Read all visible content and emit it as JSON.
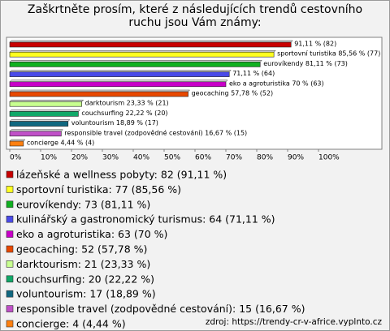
{
  "chart_data": {
    "type": "bar",
    "title": "Zaškrtněte prosím, které z následujících trendů cestovního ruchu jsou Vám známy:",
    "categories": [
      "lázeňské a wellness pobyty",
      "sportovní turistika",
      "eurovíkendy",
      "kulinářský a gastronomický turismus",
      "eko a agroturistika",
      "geocaching",
      "darktourism",
      "couchsurfing",
      "voluntourism",
      "responsible travel (zodpovědné cestování)",
      "concierge"
    ],
    "values": [
      91.11,
      85.56,
      81.11,
      71.11,
      70,
      57.78,
      23.33,
      22.22,
      18.89,
      16.67,
      4.44
    ],
    "value_labels": [
      "91,11 % (82)",
      "sportovní turistika 85,56 % (77)",
      "eurovíkendy 81,11 % (73)",
      "71,11 % (64)",
      "eko a agroturistika 70 % (63)",
      "geocaching 57,78 % (52)",
      "darktourism 23,33 % (21)",
      "couchsurfing 22,22 % (20)",
      "voluntourism 18,89 % (17)",
      "responsible travel (zodpovědné cestování) 16,67 % (15)",
      "concierge 4,44 % (4)"
    ],
    "colors": [
      "#c80000",
      "#ffff20",
      "#10b020",
      "#4a4ae8",
      "#c800c8",
      "#e84800",
      "#c8ff90",
      "#10a868",
      "#106880",
      "#c050c8",
      "#ff8010"
    ],
    "legend": [
      "lázeňské a wellness pobyty: 82 (91,11 %)",
      "sportovní turistika: 77 (85,56 %)",
      "eurovíkendy: 73 (81,11 %)",
      "kulinářský a gastronomický turismus: 64 (71,11 %)",
      "eko a agroturistika: 63 (70 %)",
      "geocaching: 52 (57,78 %)",
      "darktourism: 21 (23,33 %)",
      "couchsurfing: 20 (22,22 %)",
      "voluntourism: 17 (18,89 %)",
      "responsible travel (zodpovědné cestování): 15 (16,67 %)",
      "concierge: 4 (4,44 %)"
    ],
    "xlim": [
      0,
      100
    ],
    "xticks": [
      {
        "value": 0,
        "label": "0%"
      },
      {
        "value": 10,
        "label": "10%"
      },
      {
        "value": 20,
        "label": "20%"
      },
      {
        "value": 30,
        "label": "30%"
      },
      {
        "value": 40,
        "label": "40%"
      },
      {
        "value": 50,
        "label": "50%"
      },
      {
        "value": 60,
        "label": "60%"
      },
      {
        "value": 70,
        "label": "70%"
      },
      {
        "value": 80,
        "label": "80%"
      },
      {
        "value": 90,
        "label": "90%"
      },
      {
        "value": 100,
        "label": "100%"
      }
    ],
    "source": "zdroj: https://trendy-cr-v-africe.vyplnto.cz"
  }
}
